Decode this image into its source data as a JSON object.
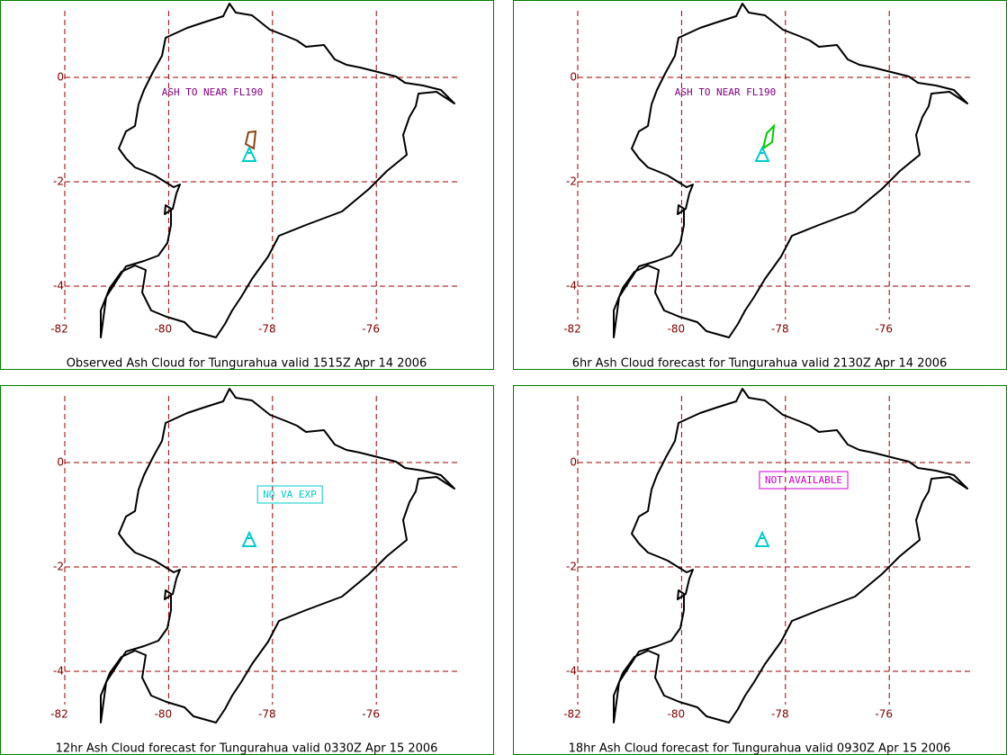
{
  "map": {
    "xticks": [
      -82,
      -80,
      -78,
      -76
    ],
    "yticks": [
      0,
      -2,
      -4
    ]
  },
  "panels": [
    {
      "caption": "Observed Ash Cloud for Tungurahua valid 1515Z Apr 14 2006",
      "annotation": "ASH TO NEAR FL190"
    },
    {
      "caption": "6hr Ash Cloud forecast for Tungurahua valid 2130Z Apr 14 2006",
      "annotation": "ASH TO NEAR FL190"
    },
    {
      "caption": "12hr Ash Cloud forecast for Tungurahua valid 0330Z Apr 15 2006",
      "annotation": "NO VA EXP"
    },
    {
      "caption": "18hr Ash Cloud forecast for Tungurahua valid 0930Z Apr 15 2006",
      "annotation": "NOT AVAILABLE"
    }
  ]
}
